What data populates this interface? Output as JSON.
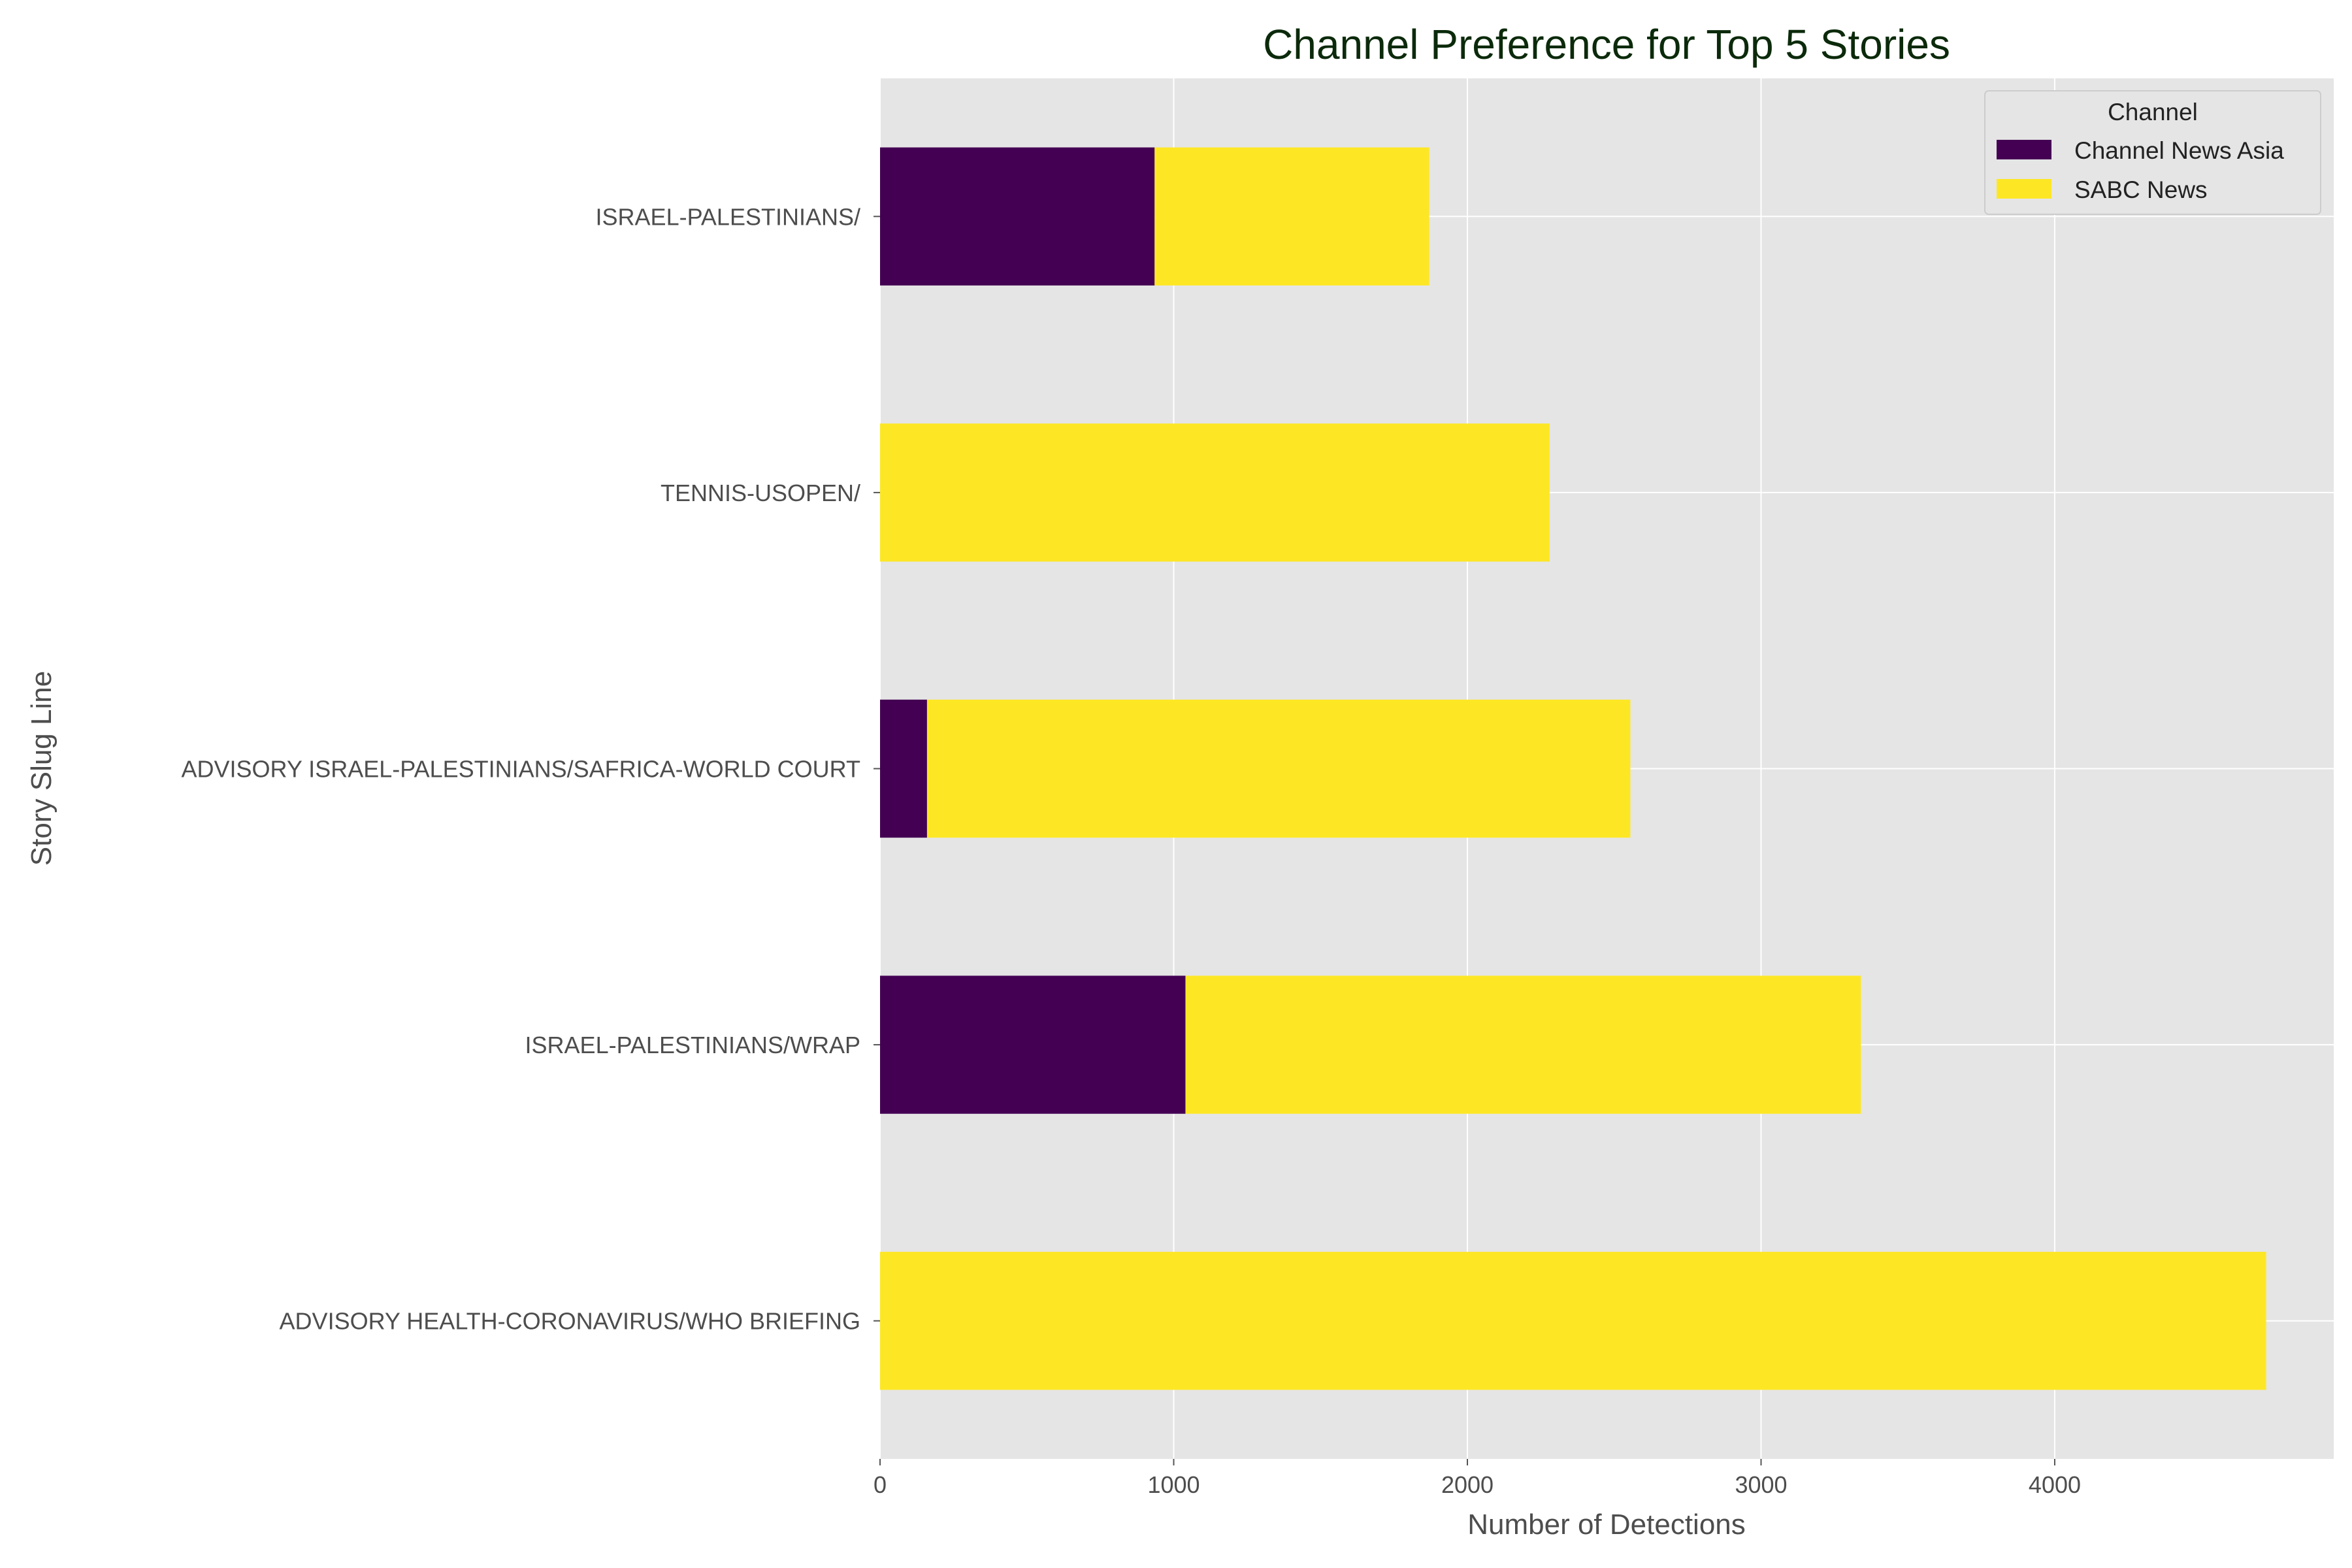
{
  "chart_data": {
    "type": "bar",
    "orientation": "horizontal",
    "stacked": true,
    "title": "Channel Preference for Top 5 Stories",
    "xlabel": "Number of Detections",
    "ylabel": "Story Slug Line",
    "categories": [
      "ADVISORY HEALTH-CORONAVIRUS/WHO BRIEFING",
      "ISRAEL-PALESTINIANS/WRAP",
      "ADVISORY ISRAEL-PALESTINIANS/SAFRICA-WORLD COURT",
      "TENNIS-USOPEN/",
      "ISRAEL-PALESTINIANS/"
    ],
    "series": [
      {
        "name": "Channel News Asia",
        "color": "#440154",
        "values": [
          0,
          1040,
          160,
          0,
          935
        ]
      },
      {
        "name": "SABC News",
        "color": "#fde725",
        "values": [
          4720,
          2300,
          2395,
          2280,
          935
        ]
      }
    ],
    "xlim": [
      0,
      4950
    ],
    "xticks": [
      0,
      1000,
      2000,
      3000,
      4000
    ],
    "xtick_labels": [
      "0",
      "1000",
      "2000",
      "3000",
      "4000"
    ],
    "grid": true,
    "legend": {
      "title": "Channel",
      "position": "top-right"
    },
    "colors": {
      "plot_background": "#e5e5e5",
      "grid": "#ffffff",
      "title": "#0b2a0b",
      "text": "#4d4d4d"
    }
  }
}
